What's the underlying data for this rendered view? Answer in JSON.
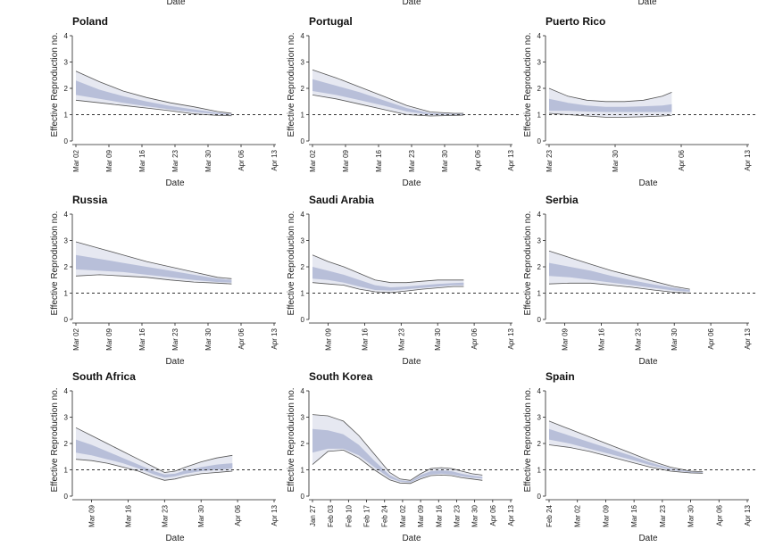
{
  "top_row_labels": [
    "Date",
    "Date",
    "Date"
  ],
  "chart_data": [
    {
      "type": "area",
      "title": "Poland",
      "xlabel": "Date",
      "ylabel": "Effective Reproduction no.",
      "ylim": [
        0,
        4
      ],
      "yticks": [
        "0",
        "1",
        "2",
        "3",
        "4"
      ],
      "xlim": [
        0,
        42
      ],
      "xticks": [
        {
          "v": 0,
          "label": "Mar 02"
        },
        {
          "v": 7,
          "label": "Mar 09"
        },
        {
          "v": 14,
          "label": "Mar 16"
        },
        {
          "v": 21,
          "label": "Mar 23"
        },
        {
          "v": 28,
          "label": "Mar 30"
        },
        {
          "v": 35,
          "label": "Apr 06"
        },
        {
          "v": 42,
          "label": "Apr 13"
        }
      ],
      "reference_line": 1,
      "x": [
        0,
        5,
        10,
        15,
        20,
        25,
        30,
        33
      ],
      "outer_upper": [
        2.65,
        2.25,
        1.9,
        1.65,
        1.45,
        1.3,
        1.12,
        1.05
      ],
      "inner_upper": [
        2.3,
        1.95,
        1.7,
        1.5,
        1.33,
        1.2,
        1.07,
        1.03
      ],
      "inner_lower": [
        1.75,
        1.6,
        1.45,
        1.32,
        1.2,
        1.1,
        1.02,
        1.0
      ],
      "outer_lower": [
        1.55,
        1.45,
        1.35,
        1.25,
        1.15,
        1.03,
        0.97,
        0.96
      ]
    },
    {
      "type": "area",
      "title": "Portugal",
      "xlabel": "Date",
      "ylabel": "Effective Reproduction no.",
      "ylim": [
        0,
        4
      ],
      "yticks": [
        "0",
        "1",
        "2",
        "3",
        "4"
      ],
      "xlim": [
        0,
        42
      ],
      "xticks": [
        {
          "v": 0,
          "label": "Mar 02"
        },
        {
          "v": 7,
          "label": "Mar 09"
        },
        {
          "v": 14,
          "label": "Mar 16"
        },
        {
          "v": 21,
          "label": "Mar 23"
        },
        {
          "v": 28,
          "label": "Mar 30"
        },
        {
          "v": 35,
          "label": "Apr 06"
        },
        {
          "v": 42,
          "label": "Apr 13"
        }
      ],
      "reference_line": 1,
      "x": [
        0,
        5,
        10,
        15,
        20,
        25,
        30,
        32
      ],
      "outer_upper": [
        2.7,
        2.4,
        2.05,
        1.7,
        1.35,
        1.1,
        1.05,
        1.05
      ],
      "inner_upper": [
        2.35,
        2.1,
        1.85,
        1.55,
        1.25,
        1.05,
        1.03,
        1.03
      ],
      "inner_lower": [
        1.9,
        1.75,
        1.55,
        1.35,
        1.12,
        1.0,
        1.0,
        1.0
      ],
      "outer_lower": [
        1.75,
        1.6,
        1.4,
        1.2,
        1.0,
        0.95,
        0.97,
        0.98
      ]
    },
    {
      "type": "area",
      "title": "Puerto Rico",
      "xlabel": "Date",
      "ylabel": "Effective Reproduction no.",
      "ylim": [
        0,
        4
      ],
      "yticks": [
        "0",
        "1",
        "2",
        "3",
        "4"
      ],
      "xlim": [
        0,
        21
      ],
      "xticks": [
        {
          "v": 0,
          "label": "Mar 23"
        },
        {
          "v": 7,
          "label": "Mar 30"
        },
        {
          "v": 14,
          "label": "Apr 06"
        },
        {
          "v": 21,
          "label": "Apr 13"
        }
      ],
      "reference_line": 1,
      "x": [
        0,
        2,
        4,
        6,
        8,
        10,
        12,
        13
      ],
      "outer_upper": [
        2.0,
        1.7,
        1.55,
        1.5,
        1.5,
        1.55,
        1.7,
        1.85
      ],
      "inner_upper": [
        1.6,
        1.45,
        1.35,
        1.3,
        1.3,
        1.32,
        1.35,
        1.4
      ],
      "inner_lower": [
        1.15,
        1.15,
        1.12,
        1.1,
        1.1,
        1.1,
        1.1,
        1.1
      ],
      "outer_lower": [
        1.05,
        1.0,
        0.95,
        0.9,
        0.9,
        0.92,
        0.95,
        0.97
      ]
    },
    {
      "type": "area",
      "title": "Russia",
      "xlabel": "Date",
      "ylabel": "Effective Reproduction no.",
      "ylim": [
        0,
        4
      ],
      "yticks": [
        "0",
        "1",
        "2",
        "3",
        "4"
      ],
      "xlim": [
        0,
        42
      ],
      "xticks": [
        {
          "v": 0,
          "label": "Mar 02"
        },
        {
          "v": 7,
          "label": "Mar 09"
        },
        {
          "v": 14,
          "label": "Mar 16"
        },
        {
          "v": 21,
          "label": "Mar 23"
        },
        {
          "v": 28,
          "label": "Mar 30"
        },
        {
          "v": 35,
          "label": "Apr 06"
        },
        {
          "v": 42,
          "label": "Apr 13"
        }
      ],
      "reference_line": 1,
      "x": [
        0,
        5,
        10,
        15,
        20,
        25,
        30,
        33
      ],
      "outer_upper": [
        2.95,
        2.7,
        2.45,
        2.2,
        2.0,
        1.8,
        1.6,
        1.55
      ],
      "inner_upper": [
        2.45,
        2.3,
        2.15,
        2.0,
        1.85,
        1.7,
        1.55,
        1.5
      ],
      "inner_lower": [
        1.9,
        1.85,
        1.8,
        1.7,
        1.6,
        1.5,
        1.42,
        1.4
      ],
      "outer_lower": [
        1.65,
        1.7,
        1.65,
        1.6,
        1.5,
        1.42,
        1.38,
        1.35
      ]
    },
    {
      "type": "area",
      "title": "Saudi Arabia",
      "xlabel": "Date",
      "ylabel": "Effective Reproduction no.",
      "ylim": [
        0,
        4
      ],
      "yticks": [
        "0",
        "1",
        "2",
        "3",
        "4"
      ],
      "xlim": [
        0,
        38
      ],
      "xticks": [
        {
          "v": 3,
          "label": "Mar 09"
        },
        {
          "v": 10,
          "label": "Mar 16"
        },
        {
          "v": 17,
          "label": "Mar 23"
        },
        {
          "v": 24,
          "label": "Mar 30"
        },
        {
          "v": 31,
          "label": "Apr 06"
        },
        {
          "v": 38,
          "label": "Apr 13"
        }
      ],
      "reference_line": 1,
      "x": [
        0,
        3,
        6,
        9,
        12,
        15,
        18,
        21,
        24,
        27,
        29
      ],
      "outer_upper": [
        2.45,
        2.2,
        2.0,
        1.75,
        1.5,
        1.4,
        1.4,
        1.45,
        1.5,
        1.5,
        1.5
      ],
      "inner_upper": [
        2.0,
        1.85,
        1.7,
        1.5,
        1.3,
        1.22,
        1.25,
        1.3,
        1.35,
        1.38,
        1.4
      ],
      "inner_lower": [
        1.55,
        1.5,
        1.4,
        1.25,
        1.12,
        1.1,
        1.15,
        1.2,
        1.25,
        1.3,
        1.3
      ],
      "outer_lower": [
        1.4,
        1.35,
        1.3,
        1.15,
        1.05,
        1.02,
        1.08,
        1.15,
        1.2,
        1.25,
        1.25
      ]
    },
    {
      "type": "area",
      "title": "Serbia",
      "xlabel": "Date",
      "ylabel": "Effective Reproduction no.",
      "ylim": [
        0,
        4
      ],
      "yticks": [
        "0",
        "1",
        "2",
        "3",
        "4"
      ],
      "xlim": [
        0,
        38
      ],
      "xticks": [
        {
          "v": 3,
          "label": "Mar 09"
        },
        {
          "v": 10,
          "label": "Mar 16"
        },
        {
          "v": 17,
          "label": "Mar 23"
        },
        {
          "v": 24,
          "label": "Mar 30"
        },
        {
          "v": 31,
          "label": "Apr 06"
        },
        {
          "v": 38,
          "label": "Apr 13"
        }
      ],
      "reference_line": 1,
      "x": [
        0,
        4,
        8,
        12,
        16,
        20,
        24,
        27
      ],
      "outer_upper": [
        2.6,
        2.35,
        2.1,
        1.85,
        1.65,
        1.45,
        1.25,
        1.15
      ],
      "inner_upper": [
        2.15,
        2.0,
        1.85,
        1.65,
        1.48,
        1.33,
        1.2,
        1.12
      ],
      "inner_lower": [
        1.65,
        1.6,
        1.5,
        1.4,
        1.3,
        1.2,
        1.1,
        1.05
      ],
      "outer_lower": [
        1.35,
        1.38,
        1.38,
        1.3,
        1.22,
        1.12,
        1.03,
        1.0
      ]
    },
    {
      "type": "area",
      "title": "South Africa",
      "xlabel": "Date",
      "ylabel": "Effective Reproduction no.",
      "ylim": [
        0,
        4
      ],
      "yticks": [
        "0",
        "1",
        "2",
        "3",
        "4"
      ],
      "xlim": [
        0,
        38
      ],
      "xticks": [
        {
          "v": 3,
          "label": "Mar 09"
        },
        {
          "v": 10,
          "label": "Mar 16"
        },
        {
          "v": 17,
          "label": "Mar 23"
        },
        {
          "v": 24,
          "label": "Mar 30"
        },
        {
          "v": 31,
          "label": "Apr 06"
        },
        {
          "v": 38,
          "label": "Apr 13"
        }
      ],
      "reference_line": 1,
      "x": [
        0,
        3,
        6,
        9,
        12,
        15,
        17,
        19,
        21,
        24,
        27,
        30
      ],
      "outer_upper": [
        2.6,
        2.3,
        2.0,
        1.7,
        1.4,
        1.1,
        0.9,
        0.95,
        1.1,
        1.3,
        1.45,
        1.55
      ],
      "inner_upper": [
        2.15,
        1.95,
        1.7,
        1.45,
        1.2,
        0.95,
        0.82,
        0.85,
        0.98,
        1.1,
        1.2,
        1.25
      ],
      "inner_lower": [
        1.65,
        1.55,
        1.4,
        1.25,
        1.05,
        0.82,
        0.7,
        0.75,
        0.85,
        0.95,
        1.0,
        1.05
      ],
      "outer_lower": [
        1.4,
        1.35,
        1.25,
        1.1,
        0.95,
        0.72,
        0.6,
        0.65,
        0.75,
        0.85,
        0.9,
        0.95
      ]
    },
    {
      "type": "area",
      "title": "South Korea",
      "xlabel": "Date",
      "ylabel": "Effective Reproduction no.",
      "ylim": [
        0,
        4
      ],
      "yticks": [
        "0",
        "1",
        "2",
        "3",
        "4"
      ],
      "xlim": [
        0,
        77
      ],
      "xticks": [
        {
          "v": 0,
          "label": "Jan 27"
        },
        {
          "v": 7,
          "label": "Feb 03"
        },
        {
          "v": 14,
          "label": "Feb 10"
        },
        {
          "v": 21,
          "label": "Feb 17"
        },
        {
          "v": 28,
          "label": "Feb 24"
        },
        {
          "v": 35,
          "label": "Mar 02"
        },
        {
          "v": 42,
          "label": "Mar 09"
        },
        {
          "v": 49,
          "label": "Mar 16"
        },
        {
          "v": 56,
          "label": "Mar 23"
        },
        {
          "v": 63,
          "label": "Mar 30"
        },
        {
          "v": 70,
          "label": "Apr 06"
        },
        {
          "v": 77,
          "label": "Apr 13"
        }
      ],
      "reference_line": 1,
      "x": [
        0,
        6,
        12,
        18,
        24,
        30,
        34,
        38,
        42,
        46,
        50,
        54,
        58,
        62,
        66
      ],
      "outer_upper": [
        3.1,
        3.05,
        2.85,
        2.3,
        1.6,
        0.9,
        0.65,
        0.6,
        0.85,
        1.05,
        1.08,
        1.05,
        0.95,
        0.85,
        0.8
      ],
      "inner_upper": [
        2.55,
        2.5,
        2.35,
        1.95,
        1.35,
        0.8,
        0.6,
        0.57,
        0.8,
        0.95,
        0.98,
        0.95,
        0.85,
        0.78,
        0.73
      ],
      "inner_lower": [
        1.65,
        1.8,
        1.8,
        1.55,
        1.1,
        0.68,
        0.55,
        0.52,
        0.7,
        0.82,
        0.85,
        0.82,
        0.75,
        0.7,
        0.67
      ],
      "outer_lower": [
        1.2,
        1.7,
        1.75,
        1.45,
        1.0,
        0.62,
        0.5,
        0.48,
        0.65,
        0.78,
        0.8,
        0.78,
        0.7,
        0.65,
        0.6
      ]
    },
    {
      "type": "area",
      "title": "Spain",
      "xlabel": "Date",
      "ylabel": "Effective Reproduction no.",
      "ylim": [
        0,
        4
      ],
      "yticks": [
        "0",
        "1",
        "2",
        "3",
        "4"
      ],
      "xlim": [
        0,
        49
      ],
      "xticks": [
        {
          "v": 0,
          "label": "Feb 24"
        },
        {
          "v": 7,
          "label": "Mar 02"
        },
        {
          "v": 14,
          "label": "Mar 09"
        },
        {
          "v": 21,
          "label": "Mar 16"
        },
        {
          "v": 28,
          "label": "Mar 23"
        },
        {
          "v": 35,
          "label": "Mar 30"
        },
        {
          "v": 42,
          "label": "Apr 06"
        },
        {
          "v": 49,
          "label": "Apr 13"
        }
      ],
      "reference_line": 1,
      "x": [
        0,
        5,
        10,
        15,
        20,
        25,
        30,
        35,
        38
      ],
      "outer_upper": [
        2.85,
        2.55,
        2.25,
        1.95,
        1.65,
        1.35,
        1.1,
        0.95,
        0.93
      ],
      "inner_upper": [
        2.55,
        2.3,
        2.05,
        1.8,
        1.55,
        1.28,
        1.05,
        0.93,
        0.91
      ],
      "inner_lower": [
        2.15,
        2.0,
        1.8,
        1.6,
        1.4,
        1.18,
        1.0,
        0.9,
        0.89
      ],
      "outer_lower": [
        1.95,
        1.85,
        1.7,
        1.5,
        1.3,
        1.1,
        0.95,
        0.88,
        0.87
      ]
    }
  ]
}
